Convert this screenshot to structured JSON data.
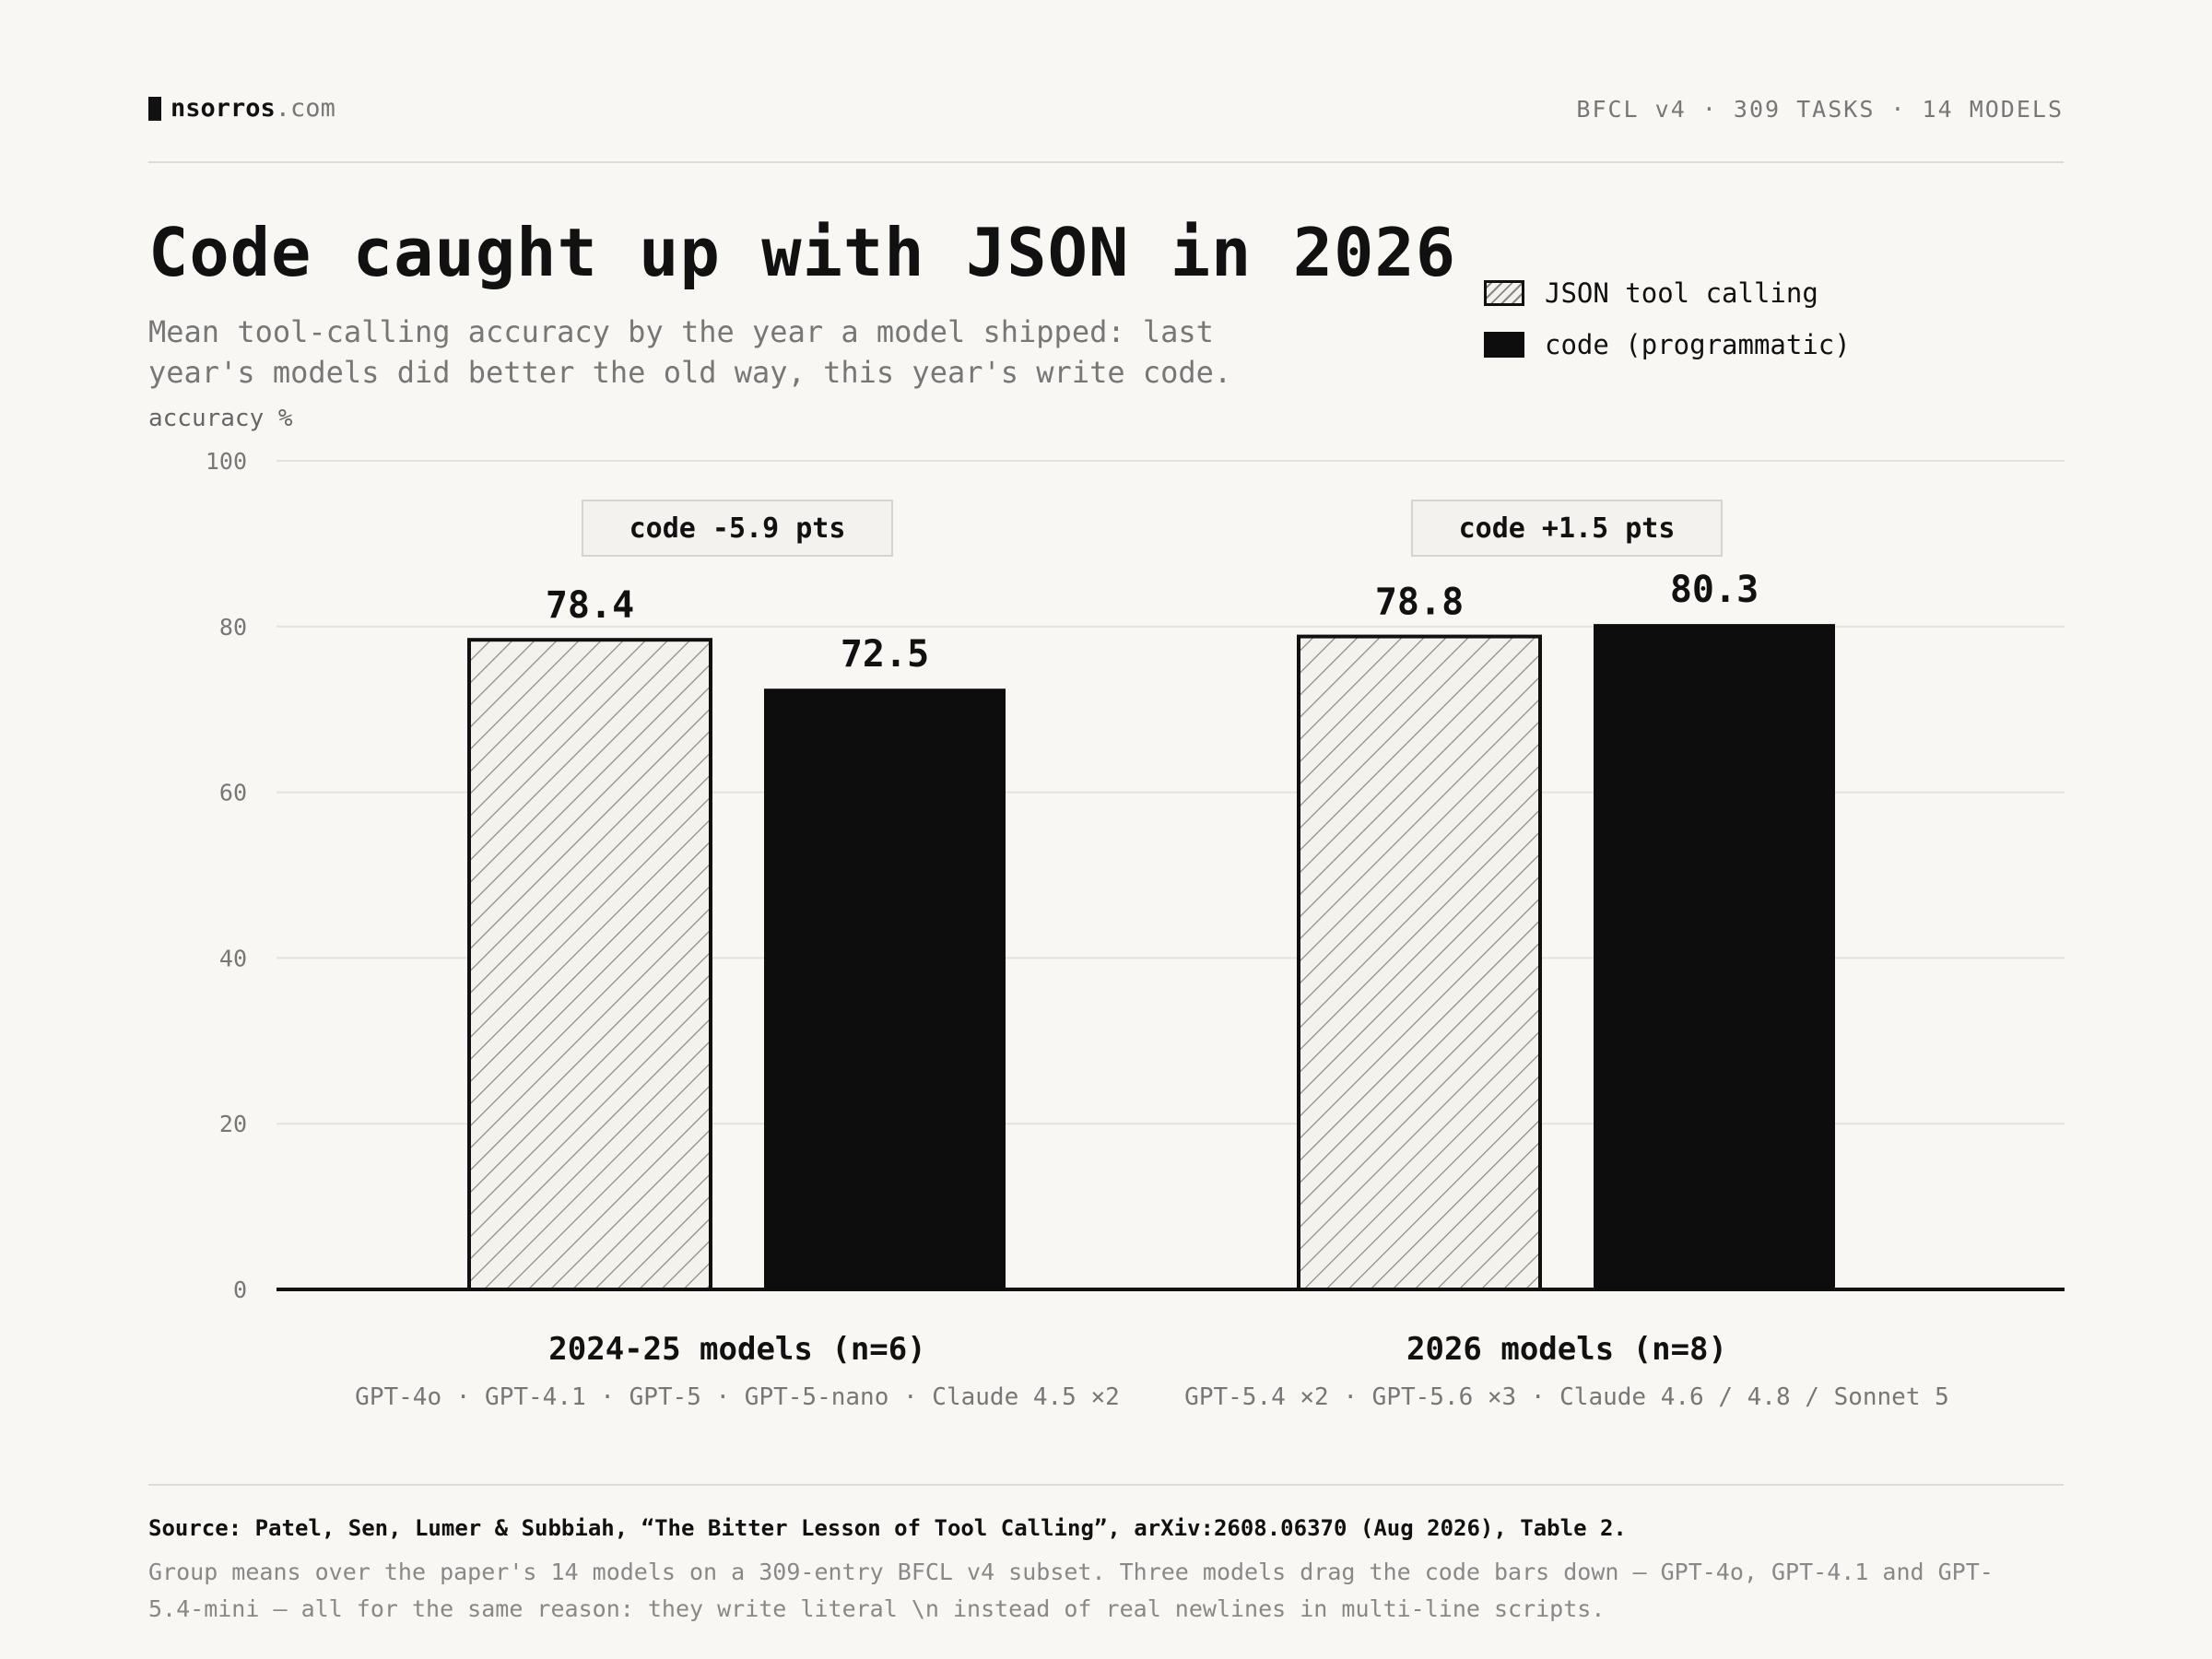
{
  "header": {
    "brand_name": "nsorros",
    "brand_tld": ".com",
    "meta": "BFCL v4 · 309 TASKS · 14 MODELS"
  },
  "title": "Code caught up with JSON in 2026",
  "subtitle": "Mean tool-calling accuracy by the year a model shipped: last year's models did better the old way, this year's write code.",
  "colors": {
    "json_fill": "#f4f2ec",
    "json_hatch": "#888888",
    "code_fill": "#0d0d0d",
    "annotation_bg": "#f3f2ee"
  },
  "chart_data": {
    "type": "bar",
    "title": "Code caught up with JSON in 2026",
    "ylabel": "accuracy %",
    "xlabel": "",
    "ylim": [
      0,
      100
    ],
    "yticks": [
      0,
      20,
      40,
      60,
      80,
      100
    ],
    "grid": true,
    "legend_position": "top-right",
    "categories": [
      "2024-25 models (n=6)",
      "2026 models (n=8)"
    ],
    "category_members": [
      "GPT-4o · GPT-4.1 · GPT-5 · GPT-5-nano · Claude 4.5 ×2",
      "GPT-5.4 ×2 · GPT-5.6 ×3 · Claude 4.6 / 4.8 / Sonnet 5"
    ],
    "series": [
      {
        "name": "JSON tool calling",
        "style": "hatched",
        "values": [
          78.4,
          78.8
        ],
        "labels": [
          "78.4",
          "78.8"
        ]
      },
      {
        "name": "code (programmatic)",
        "style": "solid",
        "values": [
          72.5,
          80.3
        ],
        "labels": [
          "72.5",
          "80.3"
        ]
      }
    ],
    "annotations": [
      "code -5.9 pts",
      "code +1.5 pts"
    ]
  },
  "footer": {
    "source": "Source: Patel, Sen, Lumer & Subbiah, “The Bitter Lesson of Tool Calling”, arXiv:2608.06370 (Aug 2026), Table 2.",
    "note": "Group means over the paper's 14 models on a 309-entry BFCL v4 subset. Three models drag the code bars down — GPT-4o, GPT-4.1 and GPT-5.4-mini — all for the same reason: they write literal \\n instead of real newlines in multi-line scripts."
  }
}
